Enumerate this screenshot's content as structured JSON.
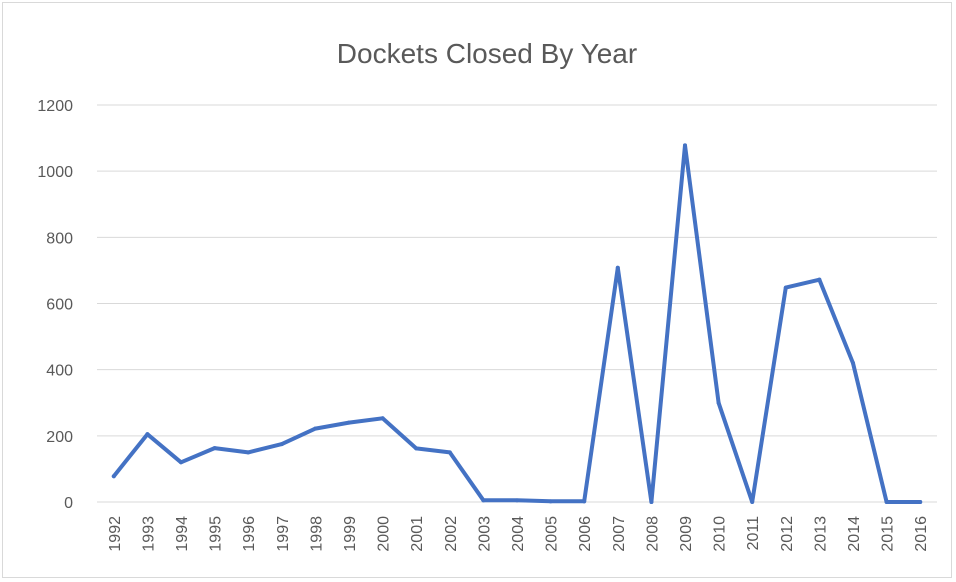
{
  "chart_data": {
    "type": "line",
    "title": "Dockets Closed By Year",
    "xlabel": "",
    "ylabel": "",
    "x": [
      "1992",
      "1993",
      "1994",
      "1995",
      "1996",
      "1997",
      "1998",
      "1999",
      "2000",
      "2001",
      "2002",
      "2003",
      "2004",
      "2005",
      "2006",
      "2007",
      "2008",
      "2009",
      "2010",
      "2011",
      "2012",
      "2013",
      "2014",
      "2015",
      "2016"
    ],
    "series": [
      {
        "values": [
          78,
          205,
          120,
          163,
          150,
          175,
          222,
          240,
          253,
          162,
          150,
          5,
          5,
          2,
          2,
          708,
          0,
          1078,
          300,
          0,
          648,
          672,
          420,
          0,
          0
        ],
        "color": "#4472c4"
      }
    ],
    "ylim": [
      0,
      1200
    ],
    "yticks": [
      0,
      200,
      400,
      600,
      800,
      1000,
      1200
    ],
    "grid": true,
    "legend": "none"
  }
}
